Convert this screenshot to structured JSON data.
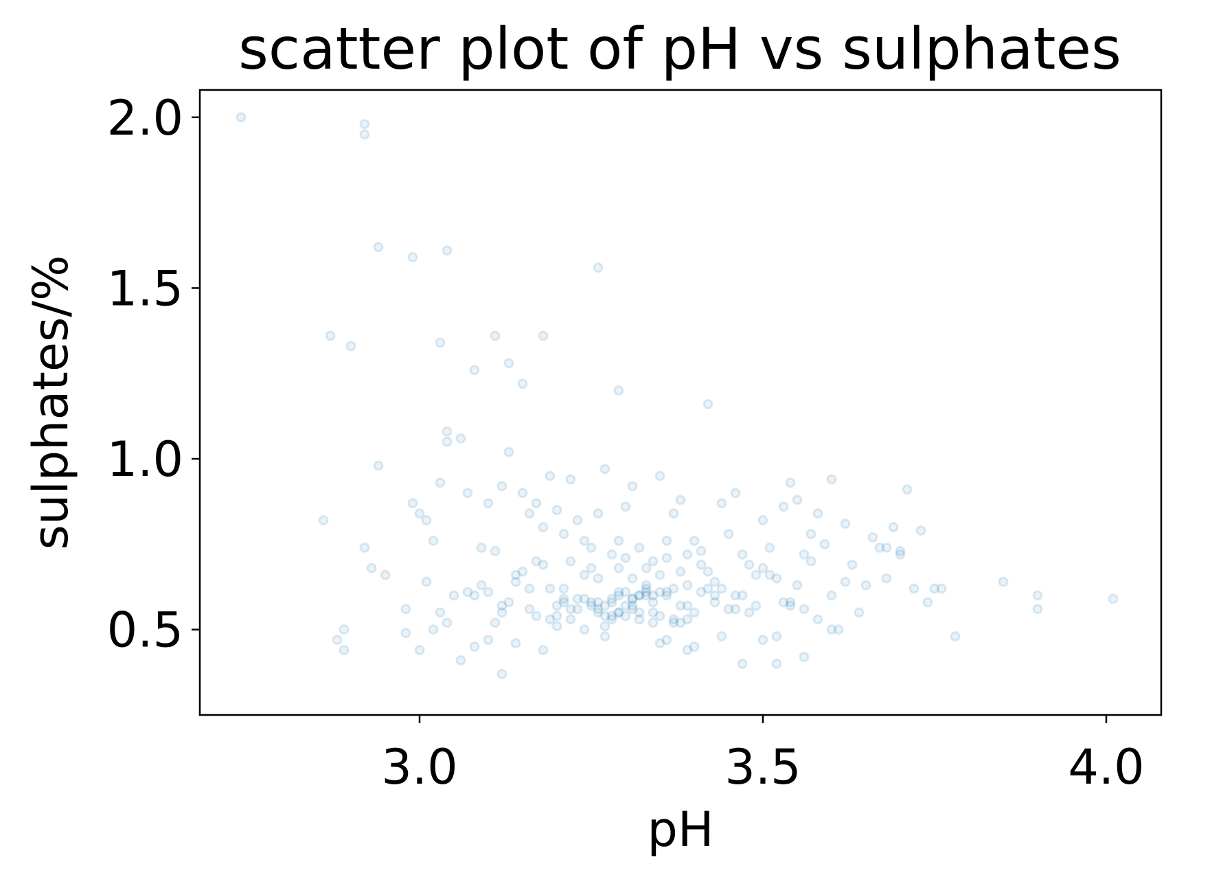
{
  "chart_data": {
    "type": "scatter",
    "title": "scatter plot of pH vs sulphates",
    "xlabel": "pH",
    "ylabel": "sulphates/%",
    "xlim": [
      2.68,
      4.08
    ],
    "ylim": [
      0.25,
      2.08
    ],
    "xticks": [
      {
        "value": 3.0,
        "label": "3.0"
      },
      {
        "value": 3.5,
        "label": "3.5"
      },
      {
        "value": 4.0,
        "label": "4.0"
      }
    ],
    "yticks": [
      {
        "value": 0.5,
        "label": "0.5"
      },
      {
        "value": 1.0,
        "label": "1.0"
      },
      {
        "value": 1.5,
        "label": "1.5"
      },
      {
        "value": 2.0,
        "label": "2.0"
      }
    ],
    "grid": false,
    "marker": {
      "shape": "circle-outline",
      "color": "#1f77b4",
      "alpha": 0.15
    },
    "series": [
      {
        "x": [
          2.74,
          2.92,
          2.92,
          2.94,
          2.99,
          3.04,
          2.87,
          2.9,
          3.03,
          3.08,
          3.11,
          3.13,
          3.15,
          3.18,
          3.26,
          3.29,
          3.42,
          2.94,
          2.86,
          2.92,
          2.93,
          2.95,
          2.89,
          2.89,
          2.88,
          2.99,
          3.0,
          3.01,
          3.02,
          3.03,
          3.04,
          3.04,
          3.06,
          3.07,
          3.09,
          3.1,
          3.11,
          3.12,
          3.13,
          3.14,
          3.15,
          3.16,
          3.17,
          3.18,
          3.19,
          3.2,
          3.21,
          3.22,
          3.23,
          3.24,
          3.25,
          3.26,
          3.27,
          3.28,
          3.29,
          3.3,
          3.31,
          3.32,
          3.33,
          3.34,
          3.35,
          3.36,
          3.37,
          3.38,
          3.39,
          3.4,
          3.41,
          3.42,
          3.43,
          3.44,
          3.45,
          3.46,
          3.47,
          3.48,
          3.49,
          3.5,
          3.51,
          3.52,
          3.53,
          3.54,
          3.55,
          3.56,
          3.57,
          3.58,
          3.6,
          3.62,
          3.63,
          3.66,
          3.68,
          3.69,
          3.7,
          3.72,
          3.74,
          3.76,
          3.78,
          3.85,
          3.9,
          4.01,
          3.9,
          3.75,
          3.68,
          3.56,
          3.54,
          3.6,
          3.38,
          3.33,
          3.28,
          3.21,
          3.16,
          3.1,
          3.08,
          3.04,
          3.0,
          2.98,
          3.2,
          3.3,
          3.35,
          3.36,
          3.39,
          3.4,
          3.47,
          3.5,
          3.52,
          3.44,
          3.31,
          3.24,
          3.22,
          3.18,
          3.12,
          3.14,
          3.06,
          3.02,
          3.11,
          3.17,
          3.25,
          3.29,
          3.27,
          3.32,
          3.34,
          3.37,
          3.41,
          3.45,
          3.48,
          3.53,
          3.58,
          3.61,
          3.64,
          3.55,
          3.49,
          3.43,
          3.39,
          3.36,
          3.31,
          3.26,
          3.23,
          3.19,
          3.15,
          3.13,
          3.09,
          3.05,
          3.01,
          2.98,
          3.07,
          3.12,
          3.2,
          3.28,
          3.33,
          3.35,
          3.44,
          3.46,
          3.5,
          3.57,
          3.62,
          3.65,
          3.7,
          3.73,
          3.71,
          3.67,
          3.59,
          3.51,
          3.42,
          3.38,
          3.3,
          3.24,
          3.18,
          3.16,
          3.12,
          3.1,
          3.22,
          3.26,
          3.34,
          3.37,
          3.4,
          3.46,
          3.52,
          3.56,
          3.6,
          3.54,
          3.47,
          3.41,
          3.36,
          3.29,
          3.25,
          3.21,
          3.17,
          3.14,
          3.08,
          3.03,
          3.19,
          3.27,
          3.31,
          3.35,
          3.39,
          3.43,
          3.29,
          3.32,
          3.28,
          3.3,
          3.33,
          3.27,
          3.31,
          3.26,
          3.34,
          3.36,
          3.25,
          3.29,
          3.38,
          3.24,
          3.32,
          3.3,
          3.22,
          3.28,
          3.35,
          3.33,
          3.2,
          3.26,
          3.37,
          3.31,
          3.23,
          3.39,
          3.21,
          3.29,
          3.34,
          3.27,
          3.32
        ],
        "y": [
          2.0,
          1.98,
          1.95,
          1.62,
          1.59,
          1.61,
          1.36,
          1.33,
          1.34,
          1.26,
          1.36,
          1.28,
          1.22,
          1.36,
          1.56,
          1.2,
          1.16,
          0.98,
          0.82,
          0.74,
          0.68,
          0.66,
          0.5,
          0.44,
          0.47,
          0.87,
          0.84,
          0.82,
          0.76,
          0.93,
          1.08,
          1.05,
          1.06,
          0.9,
          0.74,
          0.87,
          0.73,
          0.92,
          1.02,
          0.66,
          0.9,
          0.84,
          0.87,
          0.8,
          0.95,
          0.85,
          0.78,
          0.94,
          0.82,
          0.76,
          0.68,
          0.84,
          0.97,
          0.72,
          0.76,
          0.86,
          0.92,
          0.74,
          0.68,
          0.7,
          0.95,
          0.76,
          0.84,
          0.88,
          0.72,
          0.76,
          0.73,
          0.67,
          0.64,
          0.87,
          0.78,
          0.9,
          0.72,
          0.69,
          0.66,
          0.82,
          0.74,
          0.65,
          0.86,
          0.93,
          0.88,
          0.72,
          0.78,
          0.84,
          0.94,
          0.81,
          0.69,
          0.77,
          0.65,
          0.8,
          0.72,
          0.62,
          0.58,
          0.62,
          0.48,
          0.64,
          0.6,
          0.59,
          0.56,
          0.62,
          0.74,
          0.56,
          0.57,
          0.6,
          0.52,
          0.62,
          0.54,
          0.59,
          0.56,
          0.47,
          0.45,
          0.52,
          0.44,
          0.49,
          0.51,
          0.54,
          0.46,
          0.47,
          0.44,
          0.45,
          0.4,
          0.47,
          0.4,
          0.48,
          0.57,
          0.5,
          0.53,
          0.44,
          0.37,
          0.46,
          0.41,
          0.5,
          0.52,
          0.54,
          0.57,
          0.6,
          0.51,
          0.55,
          0.58,
          0.52,
          0.61,
          0.56,
          0.55,
          0.58,
          0.53,
          0.5,
          0.55,
          0.63,
          0.57,
          0.6,
          0.63,
          0.61,
          0.65,
          0.58,
          0.59,
          0.62,
          0.67,
          0.58,
          0.63,
          0.6,
          0.64,
          0.56,
          0.61,
          0.55,
          0.54,
          0.59,
          0.63,
          0.66,
          0.62,
          0.56,
          0.68,
          0.7,
          0.64,
          0.63,
          0.73,
          0.79,
          0.91,
          0.74,
          0.75,
          0.66,
          0.62,
          0.67,
          0.71,
          0.66,
          0.69,
          0.62,
          0.57,
          0.61,
          0.7,
          0.65,
          0.6,
          0.53,
          0.55,
          0.6,
          0.48,
          0.42,
          0.5,
          0.58,
          0.6,
          0.69,
          0.71,
          0.68,
          0.74,
          0.62,
          0.7,
          0.64,
          0.6,
          0.55,
          0.53,
          0.48,
          0.56,
          0.61,
          0.57,
          0.58,
          0.55,
          0.6,
          0.53,
          0.57,
          0.61,
          0.54,
          0.59,
          0.56,
          0.52,
          0.6,
          0.58,
          0.55,
          0.57,
          0.59,
          0.53,
          0.61,
          0.56,
          0.58,
          0.54,
          0.6,
          0.57,
          0.55,
          0.62,
          0.59,
          0.56,
          0.53,
          0.58,
          0.61,
          0.55,
          0.57,
          0.6
        ]
      }
    ]
  }
}
